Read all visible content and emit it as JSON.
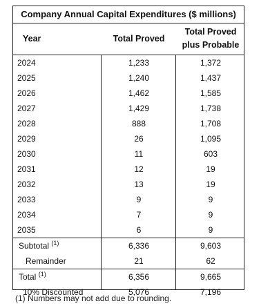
{
  "table": {
    "title": "Company Annual Capital Expenditures ($ millions)",
    "headers": {
      "year": "Year",
      "proved": "Total Proved",
      "probable_line1": "Total Proved",
      "probable_line2": "plus Probable"
    },
    "rows": [
      {
        "year": "2024",
        "proved": "1,233",
        "probable": "1,372"
      },
      {
        "year": "2025",
        "proved": "1,240",
        "probable": "1,437"
      },
      {
        "year": "2026",
        "proved": "1,462",
        "probable": "1,585"
      },
      {
        "year": "2027",
        "proved": "1,429",
        "probable": "1,738"
      },
      {
        "year": "2028",
        "proved": "888",
        "probable": "1,708"
      },
      {
        "year": "2029",
        "proved": "26",
        "probable": "1,095"
      },
      {
        "year": "2030",
        "proved": "11",
        "probable": "603"
      },
      {
        "year": "2031",
        "proved": "12",
        "probable": "19"
      },
      {
        "year": "2032",
        "proved": "13",
        "probable": "19"
      },
      {
        "year": "2033",
        "proved": "9",
        "probable": "9"
      },
      {
        "year": "2034",
        "proved": "7",
        "probable": "9"
      },
      {
        "year": "2035",
        "proved": "6",
        "probable": "9"
      }
    ],
    "subtotal": {
      "label": "Subtotal",
      "note": "(1)",
      "proved": "6,336",
      "probable": "9,603"
    },
    "remainder": {
      "label": "Remainder",
      "proved": "21",
      "probable": "62"
    },
    "total": {
      "label": "Total",
      "note": "(1)",
      "proved": "6,356",
      "probable": "9,665"
    },
    "discounted": {
      "label": "10% Discounted",
      "proved": "5,076",
      "probable": "7,196"
    }
  },
  "footnote": "(1) Numbers may not add due to rounding."
}
